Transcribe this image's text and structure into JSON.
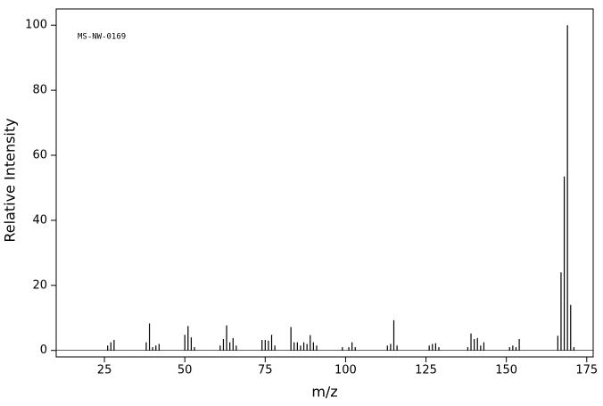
{
  "chart_data": {
    "type": "stem",
    "annotation": "MS-NW-0169",
    "xlabel": "m/z",
    "ylabel": "Relative Intensity",
    "x": [
      26,
      27,
      28,
      38,
      39,
      40,
      41,
      42,
      50,
      51,
      52,
      53,
      61,
      62,
      63,
      64,
      65,
      66,
      74,
      75,
      76,
      77,
      78,
      83,
      84,
      85,
      86,
      87,
      88,
      89,
      90,
      91,
      99,
      101,
      102,
      103,
      113,
      114,
      115,
      116,
      126,
      127,
      128,
      129,
      138,
      139,
      140,
      141,
      142,
      143,
      151,
      152,
      153,
      154,
      166,
      167,
      168,
      169,
      170,
      171
    ],
    "values": [
      1.5,
      2.5,
      3.2,
      2.5,
      8.3,
      1,
      1.5,
      2,
      4.8,
      7.5,
      4,
      1,
      1.5,
      3.5,
      7.7,
      2.5,
      3.8,
      1.5,
      3.2,
      3.2,
      3,
      4.8,
      1.5,
      7.2,
      2.5,
      2.5,
      1.5,
      2.5,
      2,
      4.7,
      2.5,
      1.5,
      1,
      1,
      2.5,
      1,
      1.5,
      2,
      9.3,
      1.5,
      1.5,
      2,
      2.2,
      1,
      1,
      5.2,
      3.5,
      3.8,
      1.5,
      2.5,
      1,
      1.5,
      1,
      3.5,
      4.5,
      24,
      53.5,
      100,
      14,
      1
    ],
    "color": "#000000",
    "xlim": [
      10,
      177
    ],
    "ylim": [
      -2,
      105
    ],
    "xticks": [
      25,
      50,
      75,
      100,
      125,
      150,
      175
    ],
    "yticks": [
      0,
      20,
      40,
      60,
      80,
      100
    ]
  }
}
